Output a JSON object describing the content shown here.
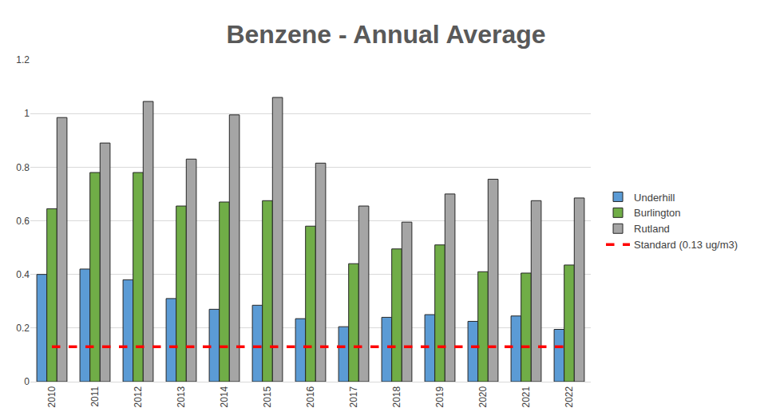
{
  "chart_data": {
    "type": "bar",
    "title": "Benzene - Annual Average",
    "categories": [
      "2010",
      "2011",
      "2012",
      "2013",
      "2014",
      "2015",
      "2016",
      "2017",
      "2018",
      "2019",
      "2020",
      "2021",
      "2022"
    ],
    "series": [
      {
        "name": "Underhill",
        "color": "#5b9bd5",
        "values": [
          0.4,
          0.42,
          0.38,
          0.31,
          0.27,
          0.285,
          0.235,
          0.205,
          0.24,
          0.25,
          0.225,
          0.245,
          0.195
        ]
      },
      {
        "name": "Burlington",
        "color": "#70ad47",
        "values": [
          0.645,
          0.78,
          0.78,
          0.655,
          0.67,
          0.675,
          0.58,
          0.44,
          0.495,
          0.51,
          0.41,
          0.405,
          0.435
        ]
      },
      {
        "name": "Rutland",
        "color": "#a5a5a5",
        "values": [
          0.985,
          0.89,
          1.045,
          0.83,
          0.995,
          1.06,
          0.815,
          0.655,
          0.595,
          0.7,
          0.755,
          0.675,
          0.685
        ]
      },
      {
        "name": "Standard (0.13 ug/m3)",
        "type": "line",
        "line_style": "dash",
        "color": "#ff0000",
        "values": [
          0.13,
          0.13,
          0.13,
          0.13,
          0.13,
          0.13,
          0.13,
          0.13,
          0.13,
          0.13,
          0.13,
          0.13,
          0.13
        ]
      }
    ],
    "ylim": [
      0,
      1.2
    ],
    "yticks": [
      0,
      0.2,
      0.4,
      0.6,
      0.8,
      1,
      1.2
    ],
    "grid": true,
    "legend": "right"
  }
}
